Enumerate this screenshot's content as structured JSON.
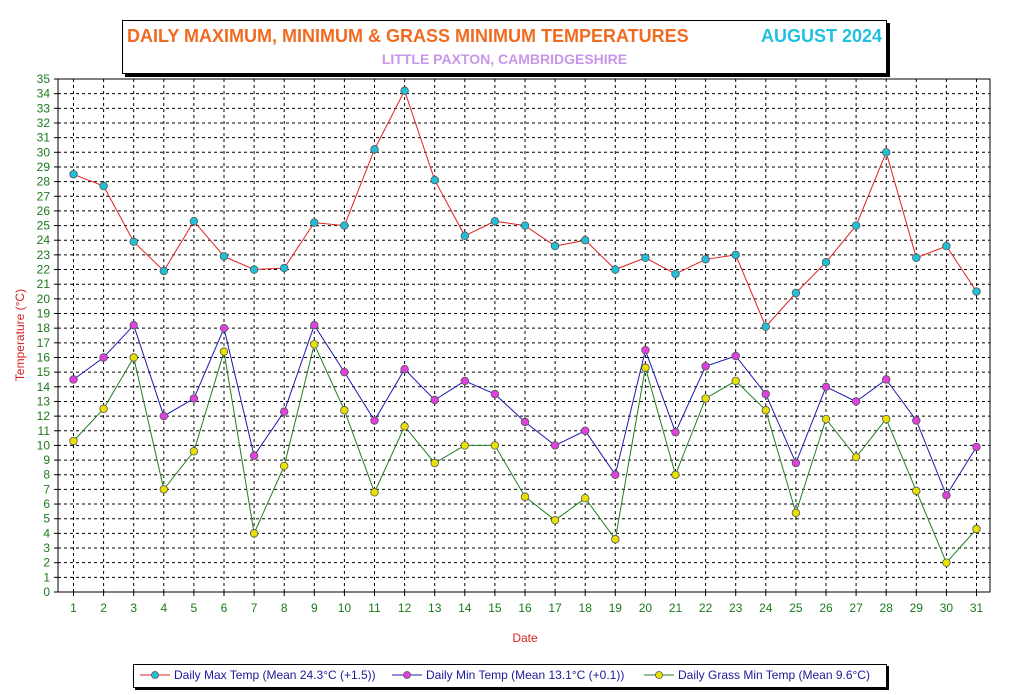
{
  "header": {
    "title": "DAILY MAXIMUM, MINIMUM & GRASS MINIMUM TEMPERATURES",
    "month": "AUGUST 2024",
    "subtitle": "LITTLE PAXTON, CAMBRIDGESHIRE"
  },
  "colors": {
    "max": "#e02020",
    "max_marker": "#22c0d8",
    "min": "#1a1ab0",
    "min_marker": "#e040e0",
    "grass": "#208020",
    "grass_marker": "#e8e000",
    "axis_label": "#d82020",
    "tick_label": "#1a7a1a"
  },
  "chart_data": {
    "type": "line",
    "xlabel": "Date",
    "ylabel": "Temperature (°C)",
    "ylim": [
      0,
      35
    ],
    "yticks": [
      "0",
      "1",
      "2",
      "3",
      "4",
      "5",
      "6",
      "7",
      "8",
      "9",
      "10",
      "11",
      "12",
      "13",
      "14",
      "15",
      "16",
      "17",
      "18",
      "19",
      "20",
      "21",
      "22",
      "23",
      "24",
      "25",
      "26",
      "27",
      "28",
      "29",
      "30",
      "31",
      "32",
      "33",
      "34",
      "35"
    ],
    "x": [
      "1",
      "2",
      "3",
      "4",
      "5",
      "6",
      "7",
      "8",
      "9",
      "10",
      "11",
      "12",
      "13",
      "14",
      "15",
      "16",
      "17",
      "18",
      "19",
      "20",
      "21",
      "22",
      "23",
      "24",
      "25",
      "26",
      "27",
      "28",
      "29",
      "30",
      "31"
    ],
    "grid": true,
    "legend_position": "bottom",
    "series": [
      {
        "name": "Daily Max Temp (Mean 24.3°C (+1.5))",
        "values": [
          28.5,
          27.7,
          23.9,
          21.9,
          25.3,
          22.9,
          22.0,
          22.1,
          25.2,
          25.0,
          30.2,
          34.2,
          28.1,
          24.3,
          25.3,
          25.0,
          23.6,
          24.0,
          22.0,
          22.8,
          21.7,
          22.7,
          23.0,
          18.1,
          20.4,
          22.5,
          25.0,
          30.0,
          22.8,
          23.6,
          20.5
        ]
      },
      {
        "name": "Daily Min Temp (Mean 13.1°C (+0.1))",
        "values": [
          14.5,
          16.0,
          18.2,
          12.0,
          13.2,
          18.0,
          9.3,
          12.3,
          18.2,
          15.0,
          11.7,
          15.2,
          13.1,
          14.4,
          13.5,
          11.6,
          10.0,
          11.0,
          8.0,
          16.5,
          10.9,
          15.4,
          16.1,
          13.5,
          8.8,
          14.0,
          13.0,
          14.5,
          11.7,
          6.6,
          9.9
        ]
      },
      {
        "name": "Daily Grass Min Temp (Mean 9.6°C)",
        "values": [
          10.3,
          12.5,
          16.0,
          7.0,
          9.6,
          16.4,
          4.0,
          8.6,
          16.9,
          12.4,
          6.8,
          11.3,
          8.8,
          10.0,
          10.0,
          6.5,
          4.9,
          6.4,
          3.6,
          15.3,
          8.0,
          13.2,
          14.4,
          12.4,
          5.4,
          11.8,
          9.2,
          11.8,
          6.9,
          2.0,
          4.3
        ]
      }
    ]
  }
}
